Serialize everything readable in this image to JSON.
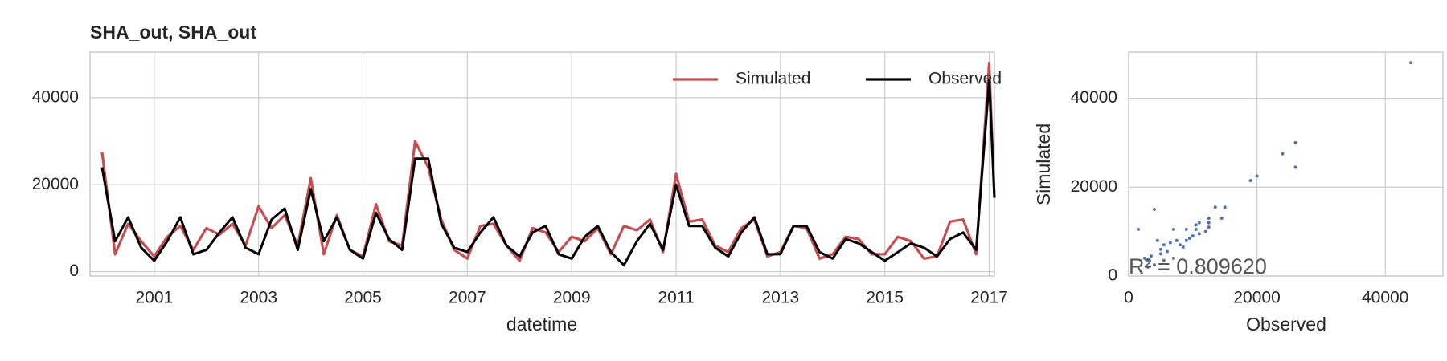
{
  "chart_data": [
    {
      "type": "line",
      "title": "SHA_out, SHA_out",
      "x_label": "datetime",
      "x": [
        2000.0,
        2000.25,
        2000.5,
        2000.75,
        2001.0,
        2001.25,
        2001.5,
        2001.75,
        2002.0,
        2002.25,
        2002.5,
        2002.75,
        2003.0,
        2003.25,
        2003.5,
        2003.75,
        2004.0,
        2004.25,
        2004.5,
        2004.75,
        2005.0,
        2005.25,
        2005.5,
        2005.75,
        2006.0,
        2006.25,
        2006.5,
        2006.75,
        2007.0,
        2007.25,
        2007.5,
        2007.75,
        2008.0,
        2008.25,
        2008.5,
        2008.75,
        2009.0,
        2009.25,
        2009.5,
        2009.75,
        2010.0,
        2010.25,
        2010.5,
        2010.75,
        2011.0,
        2011.25,
        2011.5,
        2011.75,
        2012.0,
        2012.25,
        2012.5,
        2012.75,
        2013.0,
        2013.25,
        2013.5,
        2013.75,
        2014.0,
        2014.25,
        2014.5,
        2014.75,
        2015.0,
        2015.25,
        2015.5,
        2015.75,
        2016.0,
        2016.25,
        2016.5,
        2016.75,
        2017.0,
        2017.1
      ],
      "series": [
        {
          "name": "Simulated",
          "color": "#c44e52",
          "values": [
            27500,
            4000,
            11000,
            7000,
            3500,
            8000,
            10500,
            5000,
            10000,
            8500,
            11000,
            6000,
            15000,
            10000,
            13000,
            6000,
            21500,
            4000,
            13000,
            5000,
            3500,
            15500,
            7000,
            6000,
            30000,
            24000,
            12000,
            5000,
            3000,
            10500,
            11000,
            6000,
            2500,
            10000,
            9000,
            4500,
            8000,
            7000,
            10000,
            4000,
            10500,
            9500,
            12000,
            4500,
            22500,
            11500,
            12000,
            6000,
            4500,
            10000,
            12000,
            3500,
            4500,
            10500,
            10000,
            3000,
            4000,
            8000,
            7500,
            4000,
            4000,
            8000,
            7000,
            3000,
            3500,
            11500,
            12000,
            4000,
            48000,
            17000
          ]
        },
        {
          "name": "Observed",
          "color": "#000000",
          "values": [
            24000,
            7000,
            12500,
            5500,
            2500,
            7000,
            12500,
            4000,
            5000,
            9000,
            12500,
            5500,
            4000,
            12000,
            14500,
            5000,
            19000,
            7000,
            12500,
            5000,
            3000,
            13500,
            7500,
            5000,
            26000,
            26000,
            11000,
            5500,
            4500,
            9000,
            12500,
            6000,
            3500,
            9000,
            10500,
            4000,
            3000,
            8000,
            10500,
            4500,
            1500,
            7000,
            11000,
            5000,
            20000,
            10500,
            10500,
            5500,
            3500,
            9000,
            12500,
            4000,
            4000,
            10500,
            10500,
            4500,
            3000,
            7500,
            6500,
            4500,
            2500,
            4500,
            6500,
            5500,
            3500,
            7500,
            9000,
            5000,
            44000,
            17000
          ]
        }
      ],
      "xlim": [
        1999.77,
        2017.1
      ],
      "xticks": [
        2001,
        2003,
        2005,
        2007,
        2009,
        2011,
        2013,
        2015,
        2017
      ],
      "ylim": [
        -1000,
        50500
      ],
      "yticks": [
        0,
        20000,
        40000
      ],
      "grid": true,
      "legend": "upper right"
    },
    {
      "type": "scatter",
      "x_label": "Observed",
      "y_label": "Simulated",
      "annotation": "R² = 0.809620",
      "color": "#4c72b0",
      "x": [
        44000,
        26000,
        26000,
        24000,
        20000,
        19000,
        15000,
        14500,
        13500,
        12500,
        12500,
        12000,
        11000,
        10500,
        10500,
        10000,
        9000,
        9000,
        8000,
        7500,
        7000,
        7000,
        6500,
        5500,
        5000,
        5000,
        4500,
        4000,
        3500,
        3000,
        2500,
        1500,
        12500,
        11000,
        9500,
        8500,
        6000,
        5500,
        4000,
        3000
      ],
      "y": [
        48000,
        30000,
        24500,
        27500,
        22500,
        21500,
        15500,
        13000,
        15500,
        11000,
        13000,
        10000,
        12000,
        11500,
        10500,
        9000,
        10500,
        8000,
        7000,
        8000,
        4000,
        10500,
        7500,
        7000,
        6000,
        5000,
        8000,
        15000,
        4500,
        3500,
        4000,
        10500,
        12000,
        9500,
        8500,
        6500,
        5500,
        3500,
        2500,
        2000
      ],
      "xlim": [
        0,
        49000
      ],
      "xticks": [
        0,
        20000,
        40000
      ],
      "ylim": [
        0,
        50400
      ],
      "yticks": [
        0,
        20000,
        40000
      ],
      "grid": true
    }
  ]
}
